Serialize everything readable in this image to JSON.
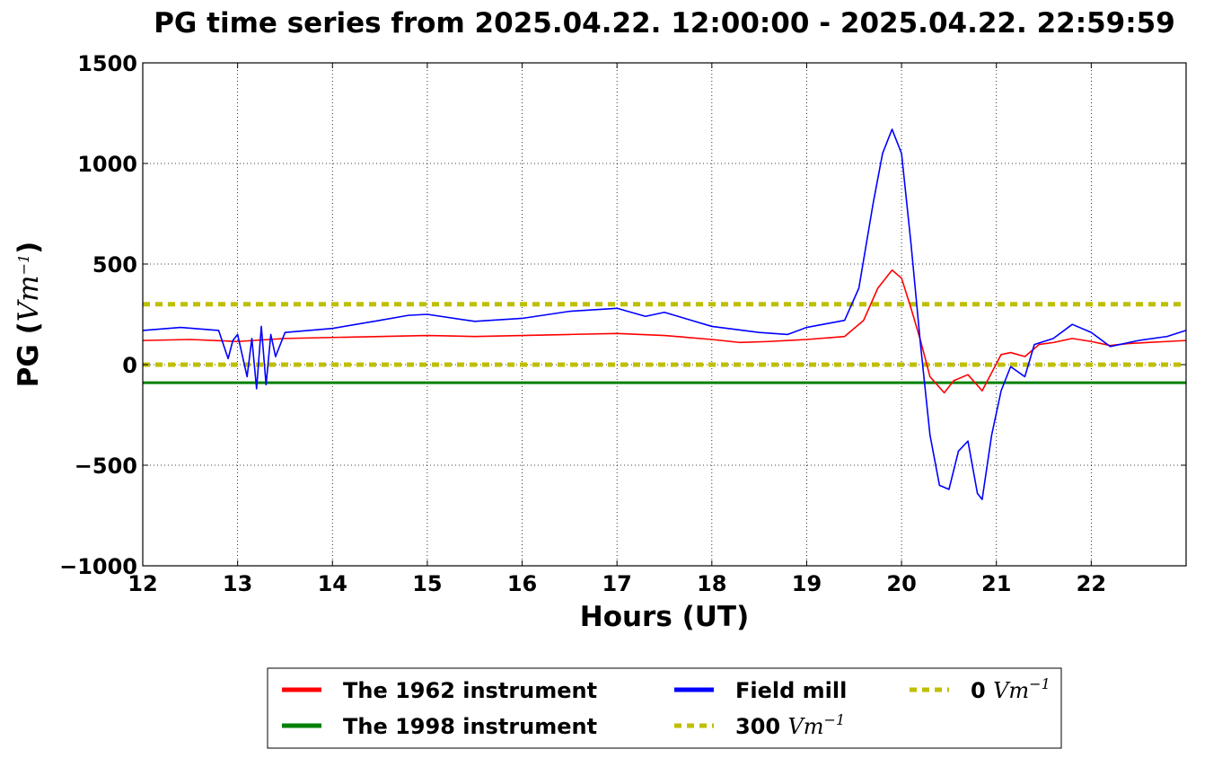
{
  "chart_data": {
    "type": "line",
    "title": "PG time series from 2025.04.22. 12:00:00 - 2025.04.22. 22:59:59",
    "xlabel": "Hours (UT)",
    "ylabel": "PG (Vm⁻¹)",
    "xlim": [
      12,
      23
    ],
    "ylim": [
      -1000,
      1500
    ],
    "xticks": [
      "12",
      "13",
      "14",
      "15",
      "16",
      "17",
      "18",
      "19",
      "20",
      "21",
      "22"
    ],
    "yticks": [
      "1500",
      "1000",
      "500",
      "0",
      "−500",
      "−1000"
    ],
    "grid": true,
    "legend_position": "below",
    "series": [
      {
        "name": "The 1962 instrument",
        "color": "#ff0000",
        "x": [
          12.0,
          12.5,
          13.0,
          13.5,
          14.0,
          14.5,
          15.0,
          15.5,
          16.0,
          16.5,
          17.0,
          17.5,
          18.0,
          18.3,
          18.6,
          19.0,
          19.4,
          19.6,
          19.75,
          19.9,
          20.0,
          20.1,
          20.2,
          20.3,
          20.45,
          20.55,
          20.7,
          20.85,
          20.95,
          21.05,
          21.15,
          21.3,
          21.45,
          21.6,
          21.8,
          22.0,
          22.2,
          22.4,
          22.6,
          22.8,
          23.0
        ],
        "values": [
          120,
          125,
          115,
          130,
          135,
          140,
          145,
          140,
          145,
          150,
          155,
          145,
          125,
          110,
          115,
          125,
          140,
          220,
          380,
          470,
          430,
          280,
          120,
          -60,
          -140,
          -80,
          -50,
          -130,
          -40,
          50,
          60,
          40,
          100,
          110,
          130,
          115,
          95,
          105,
          110,
          115,
          120
        ]
      },
      {
        "name": "The 1998 instrument",
        "color": "#008000",
        "x": [
          12.0,
          23.0
        ],
        "values": [
          -90,
          -90
        ]
      },
      {
        "name": "Field mill",
        "color": "#0000ff",
        "x": [
          12.0,
          12.4,
          12.8,
          12.9,
          12.95,
          13.0,
          13.1,
          13.15,
          13.2,
          13.25,
          13.3,
          13.35,
          13.4,
          13.5,
          14.0,
          14.5,
          14.8,
          15.0,
          15.5,
          16.0,
          16.5,
          17.0,
          17.3,
          17.5,
          18.0,
          18.5,
          18.8,
          19.0,
          19.4,
          19.55,
          19.7,
          19.8,
          19.9,
          20.0,
          20.1,
          20.2,
          20.3,
          20.4,
          20.5,
          20.6,
          20.7,
          20.8,
          20.85,
          20.95,
          21.05,
          21.15,
          21.3,
          21.4,
          21.6,
          21.8,
          22.0,
          22.2,
          22.5,
          22.8,
          23.0
        ],
        "values": [
          170,
          185,
          170,
          30,
          120,
          150,
          -60,
          130,
          -120,
          190,
          -100,
          150,
          40,
          160,
          180,
          220,
          245,
          250,
          215,
          230,
          265,
          280,
          240,
          260,
          190,
          160,
          150,
          185,
          220,
          380,
          800,
          1050,
          1170,
          1050,
          600,
          100,
          -350,
          -600,
          -620,
          -430,
          -380,
          -640,
          -670,
          -350,
          -130,
          -10,
          -60,
          100,
          130,
          200,
          160,
          90,
          120,
          140,
          170
        ]
      },
      {
        "name": "300 Vm⁻¹",
        "color": "#bfbf00",
        "dashed": true,
        "x": [
          12.0,
          23.0
        ],
        "values": [
          300,
          300
        ]
      },
      {
        "name": "0 Vm⁻¹",
        "color": "#bfbf00",
        "dashed": true,
        "x": [
          12.0,
          23.0
        ],
        "values": [
          0,
          0
        ]
      }
    ]
  }
}
